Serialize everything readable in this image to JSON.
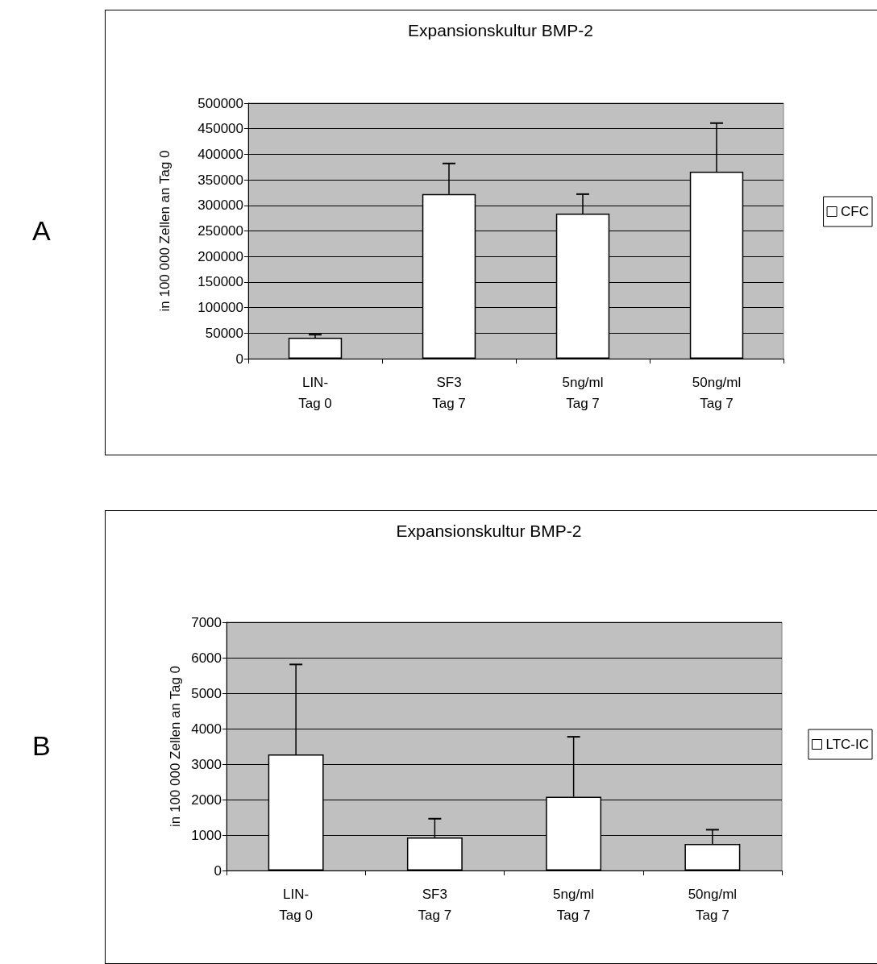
{
  "chart_data": [
    {
      "type": "bar",
      "title": "Expansionskultur BMP-2",
      "ylabel": "in 100 000 Zellen an Tag 0",
      "annotations": [
        "A"
      ],
      "categories": [
        "LIN-\nTag 0",
        "SF3\nTag 7",
        "5ng/ml\nTag 7",
        "50ng/ml\nTag 7"
      ],
      "series": [
        {
          "name": "CFC",
          "color": "#ffffff",
          "values": [
            41000,
            322000,
            284000,
            366000
          ],
          "errors": [
            [
              41000,
              47000
            ],
            [
              322000,
              382000
            ],
            [
              284000,
              322000
            ],
            [
              366000,
              461000
            ]
          ]
        }
      ],
      "ylim": [
        0,
        500000
      ],
      "yticks": [
        0,
        50000,
        100000,
        150000,
        200000,
        250000,
        300000,
        350000,
        400000,
        450000,
        500000
      ],
      "grid": "y",
      "legend": "right"
    },
    {
      "type": "bar",
      "title": "Expansionskultur BMP-2",
      "ylabel": "in 100 000 Zellen an Tag 0",
      "annotations": [
        "B"
      ],
      "categories": [
        "LIN-\nTag 0",
        "SF3\nTag 7",
        "5ng/ml\nTag 7",
        "50ng/ml\nTag 7"
      ],
      "series": [
        {
          "name": "LTC-IC",
          "color": "#ffffff",
          "values": [
            3270,
            930,
            2080,
            750
          ],
          "errors": [
            [
              3270,
              5810
            ],
            [
              930,
              1460
            ],
            [
              2080,
              3770
            ],
            [
              750,
              1150
            ]
          ]
        }
      ],
      "ylim": [
        0,
        7000
      ],
      "yticks": [
        0,
        1000,
        2000,
        3000,
        4000,
        5000,
        6000,
        7000
      ],
      "grid": "y",
      "legend": "right"
    }
  ]
}
